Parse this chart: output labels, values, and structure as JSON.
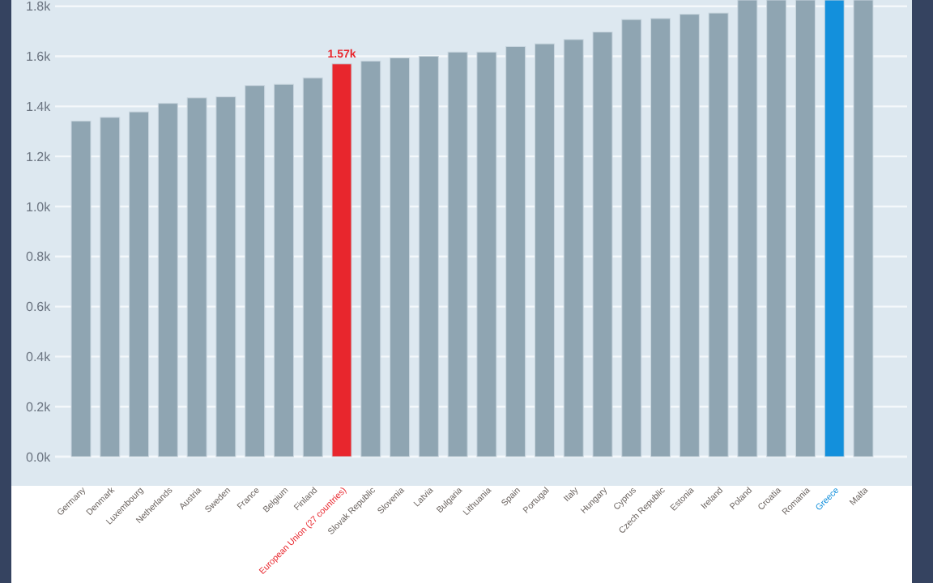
{
  "chart_data": {
    "type": "bar",
    "categories": [
      "Germany",
      "Denmark",
      "Luxembourg",
      "Netherlands",
      "Austria",
      "Sweden",
      "France",
      "Belgium",
      "Finland",
      "European Union (27 countries)",
      "Slovak Republic",
      "Slovenia",
      "Latvia",
      "Bulgaria",
      "Lithuania",
      "Spain",
      "Portugal",
      "Italy",
      "Hungary",
      "Cyprus",
      "Czech Republic",
      "Estonia",
      "Ireland",
      "Poland",
      "Croatia",
      "Romania",
      "Greece",
      "Malta"
    ],
    "values": [
      1341,
      1356,
      1378,
      1412,
      1434,
      1438,
      1483,
      1488,
      1514,
      1570,
      1581,
      1594,
      1600,
      1617,
      1617,
      1639,
      1650,
      1667,
      1697,
      1747,
      1751,
      1768,
      1773,
      1825,
      1825,
      1825,
      1825,
      1825
    ],
    "colors": [
      "#8fa5b2",
      "#8fa5b2",
      "#8fa5b2",
      "#8fa5b2",
      "#8fa5b2",
      "#8fa5b2",
      "#8fa5b2",
      "#8fa5b2",
      "#8fa5b2",
      "#e8262d",
      "#8fa5b2",
      "#8fa5b2",
      "#8fa5b2",
      "#8fa5b2",
      "#8fa5b2",
      "#8fa5b2",
      "#8fa5b2",
      "#8fa5b2",
      "#8fa5b2",
      "#8fa5b2",
      "#8fa5b2",
      "#8fa5b2",
      "#8fa5b2",
      "#8fa5b2",
      "#8fa5b2",
      "#8fa5b2",
      "#1390dc",
      "#8fa5b2"
    ],
    "value_labels": [
      null,
      null,
      null,
      null,
      null,
      null,
      null,
      null,
      null,
      "1.57k",
      null,
      null,
      null,
      null,
      null,
      null,
      null,
      null,
      null,
      null,
      null,
      null,
      null,
      null,
      null,
      null,
      null,
      null
    ],
    "ylim": [
      0,
      1825
    ],
    "yticks": [
      {
        "value": 0,
        "label": "0.0k"
      },
      {
        "value": 200,
        "label": "0.2k"
      },
      {
        "value": 400,
        "label": "0.4k"
      },
      {
        "value": 600,
        "label": "0.6k"
      },
      {
        "value": 800,
        "label": "0.8k"
      },
      {
        "value": 1000,
        "label": "1.0k"
      },
      {
        "value": 1200,
        "label": "1.2k"
      },
      {
        "value": 1400,
        "label": "1.4k"
      },
      {
        "value": 1600,
        "label": "1.6k"
      },
      {
        "value": 1800,
        "label": "1.8k"
      }
    ],
    "grid": "y"
  }
}
